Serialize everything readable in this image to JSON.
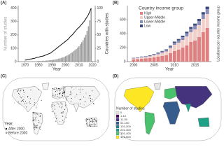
{
  "chart_data": [
    {
      "type": "bar_line",
      "panel": "(A)",
      "x_label": "Year",
      "y_label": "Number of studies",
      "y2_label": "Countries with studies",
      "x": [
        1970,
        1971,
        1972,
        1973,
        1974,
        1975,
        1976,
        1977,
        1978,
        1979,
        1980,
        1981,
        1982,
        1983,
        1984,
        1985,
        1986,
        1987,
        1988,
        1989,
        1990,
        1991,
        1992,
        1993,
        1994,
        1995,
        1996,
        1997,
        1998,
        1999,
        2000,
        2001,
        2002,
        2003,
        2004,
        2005,
        2006,
        2007,
        2008,
        2009,
        2010,
        2011,
        2012,
        2013,
        2014,
        2015,
        2016,
        2017,
        2018,
        2019
      ],
      "series": [
        {
          "color": "#9e9e9e",
          "values": [
            1,
            1,
            2,
            1,
            2,
            2,
            3,
            2,
            3,
            4,
            4,
            5,
            5,
            6,
            6,
            7,
            8,
            9,
            10,
            11,
            12,
            14,
            15,
            17,
            19,
            22,
            25,
            28,
            31,
            35,
            40,
            45,
            50,
            56,
            63,
            70,
            78,
            86,
            95,
            105,
            115,
            130,
            145,
            160,
            180,
            200,
            230,
            265,
            310,
            400
          ]
        },
        {
          "color": "#111111",
          "axis": "y2",
          "values": [
            3,
            3,
            4,
            4,
            5,
            5,
            6,
            6,
            7,
            8,
            8,
            9,
            10,
            10,
            11,
            12,
            13,
            14,
            15,
            16,
            18,
            20,
            22,
            24,
            26,
            28,
            30,
            32,
            34,
            36,
            38,
            40,
            42,
            45,
            48,
            50,
            53,
            56,
            59,
            62,
            64,
            67,
            70,
            73,
            76,
            80,
            84,
            88,
            94,
            100
          ]
        }
      ],
      "xlim": [
        1965,
        2022
      ],
      "xticks": [
        1970,
        1980,
        1990,
        2000,
        2010,
        2020
      ],
      "ylim": [
        0,
        420
      ],
      "yticks": [
        0,
        100,
        200,
        300,
        400
      ],
      "y2lim": [
        0,
        105
      ],
      "y2ticks": [
        0,
        25,
        50,
        75,
        100
      ]
    },
    {
      "type": "stacked_bar",
      "panel": "(B)",
      "x_label": "Year",
      "y2_label": "Locations per country income group",
      "legend_title": "Country income group",
      "x": [
        2000,
        2001,
        2002,
        2003,
        2004,
        2005,
        2006,
        2007,
        2008,
        2009,
        2010,
        2011,
        2012,
        2013,
        2014,
        2015,
        2016,
        2017,
        2018
      ],
      "series": [
        {
          "name": "High",
          "color": "#e08080",
          "values": [
            30,
            35,
            40,
            45,
            50,
            60,
            70,
            80,
            90,
            120,
            150,
            170,
            200,
            230,
            280,
            300,
            350,
            420,
            480
          ]
        },
        {
          "name": "Upper-Middle",
          "color": "#f3cfca",
          "values": [
            15,
            15,
            20,
            20,
            25,
            30,
            35,
            45,
            55,
            70,
            90,
            100,
            110,
            130,
            140,
            160,
            170,
            190,
            200
          ]
        },
        {
          "name": "Lower-Middle",
          "color": "#8a8fb8",
          "values": [
            5,
            5,
            8,
            8,
            10,
            12,
            15,
            18,
            20,
            25,
            30,
            35,
            40,
            45,
            50,
            55,
            60,
            65,
            70
          ]
        },
        {
          "name": "Low",
          "color": "#3d4a7d",
          "values": [
            3,
            3,
            4,
            4,
            5,
            6,
            8,
            9,
            10,
            12,
            15,
            18,
            20,
            22,
            25,
            28,
            30,
            32,
            35
          ]
        }
      ],
      "xlim": [
        1998.5,
        2019
      ],
      "xticks": [
        2000,
        2005,
        2010,
        2015
      ],
      "ylim": [
        0,
        800
      ],
      "yticks": [
        0,
        200,
        400,
        600
      ]
    },
    {
      "type": "point_map",
      "panel": "(C)",
      "legend_title": "Year",
      "series": [
        {
          "name": "After 2000",
          "color": "#111111"
        },
        {
          "name": "Before 2000",
          "color": "#9a9a9a"
        }
      ]
    },
    {
      "type": "choropleth",
      "panel": "(D)",
      "legend_title": "Number of studies",
      "categories": [
        "0",
        "1-10",
        "11-50",
        "51-100",
        "101-200",
        "201-300",
        "301-400",
        "401-500"
      ],
      "colors": [
        "#e6e6e6",
        "#440154",
        "#46337e",
        "#365c8d",
        "#277f8e",
        "#1fa187",
        "#4ac16d",
        "#fde725"
      ]
    }
  ]
}
